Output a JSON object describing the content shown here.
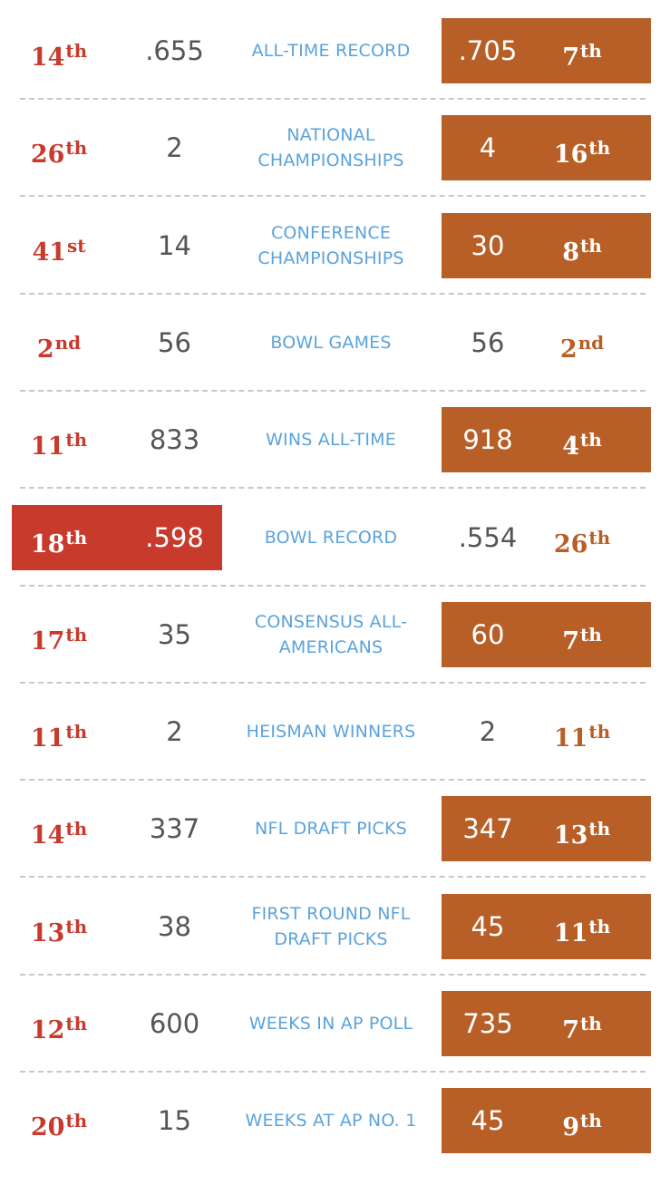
{
  "colors": {
    "left_accent": "#c73a2c",
    "right_accent": "#b85f27",
    "category_text": "#5aa3dc",
    "value_text": "#555555",
    "divider": "#c8c8c8"
  },
  "rows": [
    {
      "category": "ALL-TIME RECORD",
      "left_rank": "14",
      "left_suffix": "th",
      "left_value": ".655",
      "right_value": ".705",
      "right_rank": "7",
      "right_suffix": "th",
      "highlight": "right"
    },
    {
      "category": "NATIONAL CHAMPIONSHIPS",
      "left_rank": "26",
      "left_suffix": "th",
      "left_value": "2",
      "right_value": "4",
      "right_rank": "16",
      "right_suffix": "th",
      "highlight": "right"
    },
    {
      "category": "CONFERENCE CHAMPIONSHIPS",
      "left_rank": "41",
      "left_suffix": "st",
      "left_value": "14",
      "right_value": "30",
      "right_rank": "8",
      "right_suffix": "th",
      "highlight": "right"
    },
    {
      "category": "BOWL GAMES",
      "left_rank": "2",
      "left_suffix": "nd",
      "left_value": "56",
      "right_value": "56",
      "right_rank": "2",
      "right_suffix": "nd",
      "highlight": "none"
    },
    {
      "category": "WINS ALL-TIME",
      "left_rank": "11",
      "left_suffix": "th",
      "left_value": "833",
      "right_value": "918",
      "right_rank": "4",
      "right_suffix": "th",
      "highlight": "right"
    },
    {
      "category": "BOWL RECORD",
      "left_rank": "18",
      "left_suffix": "th",
      "left_value": ".598",
      "right_value": ".554",
      "right_rank": "26",
      "right_suffix": "th",
      "highlight": "left"
    },
    {
      "category": "CONSENSUS ALL-AMERICANS",
      "left_rank": "17",
      "left_suffix": "th",
      "left_value": "35",
      "right_value": "60",
      "right_rank": "7",
      "right_suffix": "th",
      "highlight": "right"
    },
    {
      "category": "HEISMAN WINNERS",
      "left_rank": "11",
      "left_suffix": "th",
      "left_value": "2",
      "right_value": "2",
      "right_rank": "11",
      "right_suffix": "th",
      "highlight": "none"
    },
    {
      "category": "NFL DRAFT PICKS",
      "left_rank": "14",
      "left_suffix": "th",
      "left_value": "337",
      "right_value": "347",
      "right_rank": "13",
      "right_suffix": "th",
      "highlight": "right"
    },
    {
      "category": "FIRST ROUND NFL DRAFT PICKS",
      "left_rank": "13",
      "left_suffix": "th",
      "left_value": "38",
      "right_value": "45",
      "right_rank": "11",
      "right_suffix": "th",
      "highlight": "right"
    },
    {
      "category": "WEEKS IN AP POLL",
      "left_rank": "12",
      "left_suffix": "th",
      "left_value": "600",
      "right_value": "735",
      "right_rank": "7",
      "right_suffix": "th",
      "highlight": "right"
    },
    {
      "category": "WEEKS AT AP NO. 1",
      "left_rank": "20",
      "left_suffix": "th",
      "left_value": "15",
      "right_value": "45",
      "right_rank": "9",
      "right_suffix": "th",
      "highlight": "right"
    }
  ]
}
